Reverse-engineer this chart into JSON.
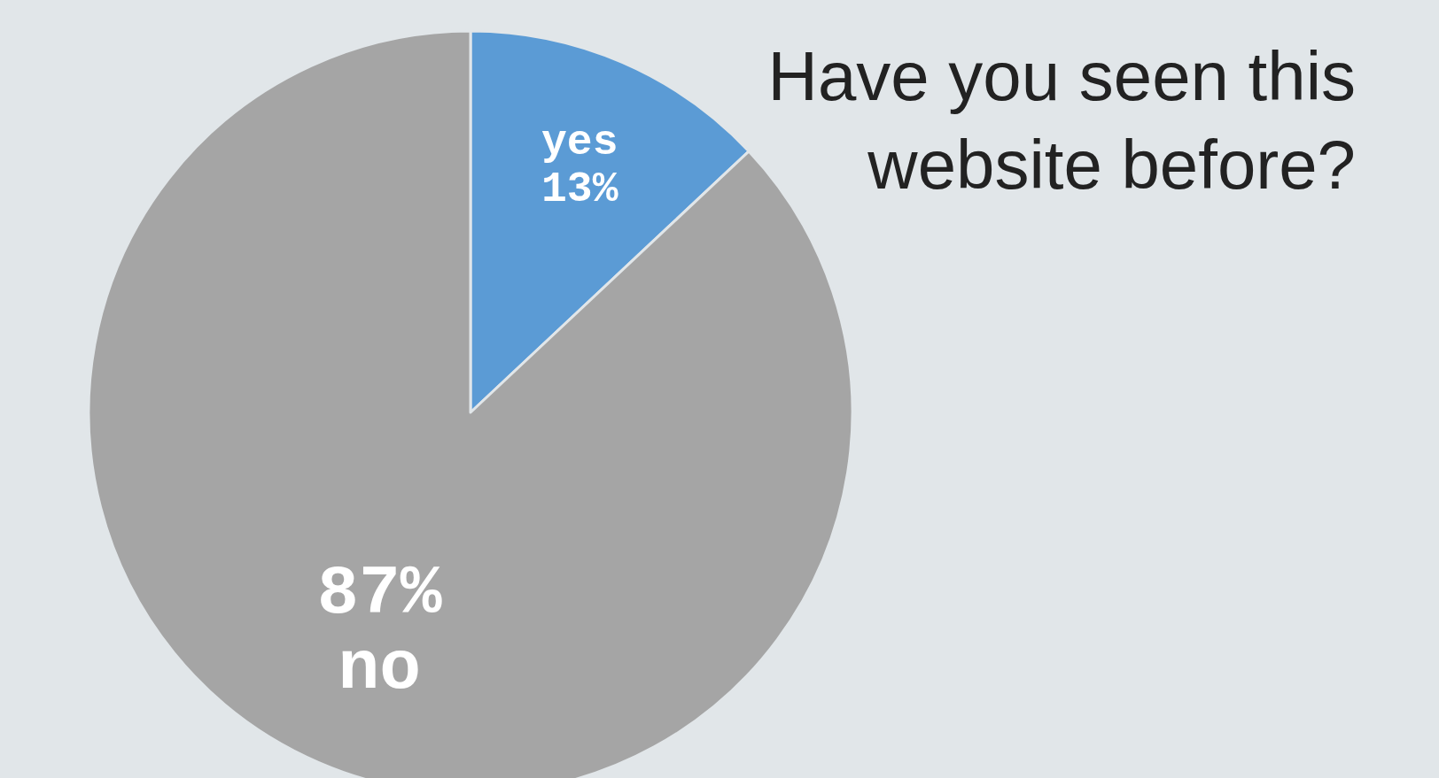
{
  "chart_data": {
    "type": "pie",
    "title": "Have you seen this website before?",
    "categories": [
      "yes",
      "no"
    ],
    "values": [
      13,
      87
    ],
    "value_labels": [
      "13%",
      "87%"
    ],
    "colors": [
      "#5b9bd5",
      "#a5a5a5"
    ]
  }
}
